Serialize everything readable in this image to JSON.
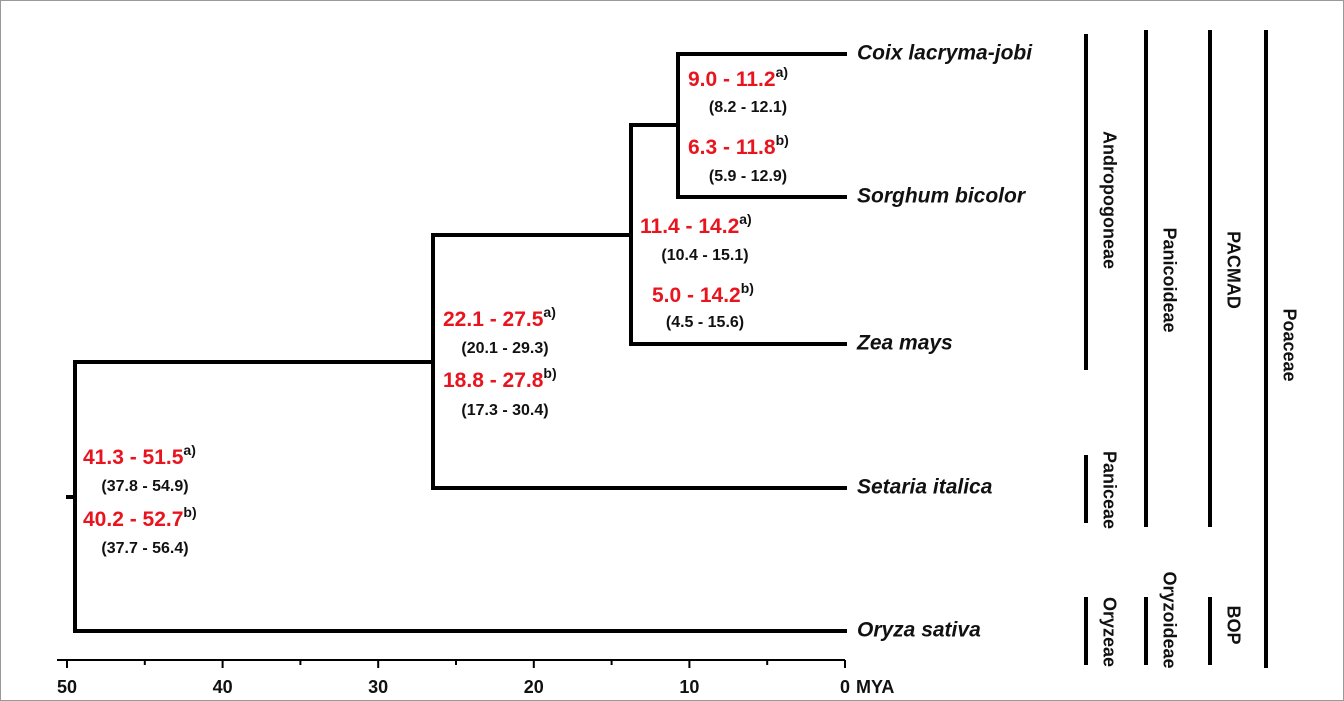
{
  "taxa": [
    "Coix lacryma-jobi",
    "Sorghum bicolor",
    "Zea mays",
    "Setaria italica",
    "Oryza sativa"
  ],
  "nodes": [
    {
      "estimates": [
        {
          "range": "9.0 - 11.2",
          "note": "a)",
          "interval": "(8.2 - 12.1)"
        },
        {
          "range": "6.3 - 11.8",
          "note": "b)",
          "interval": "(5.9 - 12.9)"
        }
      ]
    },
    {
      "estimates": [
        {
          "range": "11.4 - 14.2",
          "note": "a)",
          "interval": "(10.4 - 15.1)"
        },
        {
          "range": "5.0 - 14.2",
          "note": "b)",
          "interval": "(4.5 - 15.6)"
        }
      ]
    },
    {
      "estimates": [
        {
          "range": "22.1 - 27.5",
          "note": "a)",
          "interval": "(20.1 - 29.3)"
        },
        {
          "range": "18.8 - 27.8",
          "note": "b)",
          "interval": "(17.3 - 30.4)"
        }
      ]
    },
    {
      "estimates": [
        {
          "range": "41.3 - 51.5",
          "note": "a)",
          "interval": "(37.8 - 54.9)"
        },
        {
          "range": "40.2 - 52.7",
          "note": "b)",
          "interval": "(37.7 - 56.4)"
        }
      ]
    }
  ],
  "clades": [
    "Andropogoneae",
    "Paniceae",
    "Oryzeae",
    "Panicoideae",
    "Oryzoideae",
    "PACMAD",
    "BOP",
    "Poaceae"
  ],
  "axis": {
    "ticks": [
      50,
      40,
      30,
      20,
      10,
      0
    ],
    "minor_ticks": [
      45,
      35,
      25,
      15,
      5
    ],
    "unit": "MYA"
  }
}
